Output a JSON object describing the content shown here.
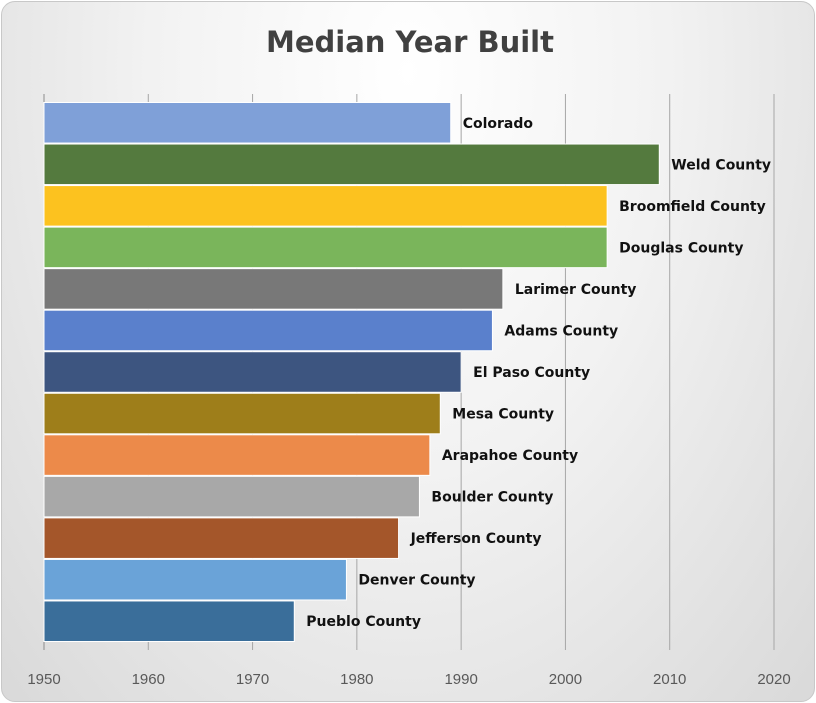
{
  "chart_data": {
    "type": "bar",
    "orientation": "horizontal",
    "title": "Median Year Built",
    "xlabel": "",
    "ylabel": "",
    "xlim": [
      1950,
      2020
    ],
    "xticks": [
      "1950",
      "1960",
      "1970",
      "1980",
      "1990",
      "2000",
      "2010",
      "2020"
    ],
    "grid": "vertical",
    "legend": "none",
    "categories": [
      "Colorado",
      "Weld County",
      "Broomfield County",
      "Douglas County",
      "Larimer County",
      "Adams County",
      "El Paso County",
      "Mesa County",
      "Arapahoe County",
      "Boulder County",
      "Jefferson County",
      "Denver County",
      "Pueblo County"
    ],
    "values": [
      1989,
      2009,
      2004,
      2004,
      1994,
      1993,
      1990,
      1988,
      1987,
      1986,
      1984,
      1979,
      1974
    ],
    "colors": [
      "#7fa0d8",
      "#547a3e",
      "#fcc21f",
      "#7ab55b",
      "#787878",
      "#5a80cc",
      "#3d5580",
      "#9e7e1a",
      "#ec8a4a",
      "#a8a8a8",
      "#a4562a",
      "#6aa3d8",
      "#3a6e9a"
    ]
  }
}
